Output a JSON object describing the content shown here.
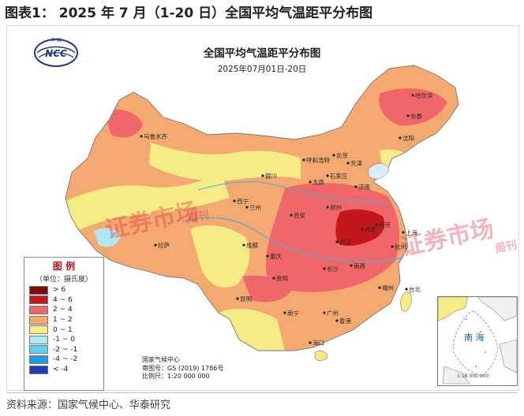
{
  "figure_title": "图表1： 2025 年 7 月（1-20 日）全国平均气温距平分布图",
  "map": {
    "title": "全国平均气温距平分布图",
    "date_range": "2025年07月01日-20日",
    "logo_text": "NCC",
    "logo_small_text": "中 国",
    "inset_label": "南 海",
    "inset_scale": "1:18 000 000",
    "watermark": "证券市场",
    "watermark_sub": "周刊"
  },
  "legend": {
    "title": "图  例",
    "unit": "（单位：摄氏度）",
    "items": [
      {
        "label": "> 6",
        "color": "#7a0c0c"
      },
      {
        "label": "4 ~ 6",
        "color": "#c4171b"
      },
      {
        "label": "2 ~ 4",
        "color": "#f0676a"
      },
      {
        "label": "1 ~ 2",
        "color": "#f3a96f"
      },
      {
        "label": "0 ~ 1",
        "color": "#f5ec85"
      },
      {
        "label": "-1 ~ 0",
        "color": "#aee9f3"
      },
      {
        "label": "-2 ~ -1",
        "color": "#5fd0ee"
      },
      {
        "label": "-4 ~ -2",
        "color": "#1e9fe0"
      },
      {
        "label": "< -4",
        "color": "#1b3fb0"
      }
    ]
  },
  "agency": {
    "name": "国家气候中心",
    "approval": "审图号：GS (2019) 1786号",
    "scale": "比例尺：1:20 000 000"
  },
  "cities": [
    {
      "name": "乌鲁木齐"
    },
    {
      "name": "呼和浩特"
    },
    {
      "name": "北京"
    },
    {
      "name": "天津"
    },
    {
      "name": "石家庄"
    },
    {
      "name": "太原"
    },
    {
      "name": "济南"
    },
    {
      "name": "银川"
    },
    {
      "name": "西宁"
    },
    {
      "name": "兰州"
    },
    {
      "name": "西安"
    },
    {
      "name": "郑州"
    },
    {
      "name": "合肥"
    },
    {
      "name": "南京"
    },
    {
      "name": "上海"
    },
    {
      "name": "武汉"
    },
    {
      "name": "杭州"
    },
    {
      "name": "成都"
    },
    {
      "name": "重庆"
    },
    {
      "name": "长沙"
    },
    {
      "name": "南昌"
    },
    {
      "name": "福州"
    },
    {
      "name": "台北"
    },
    {
      "name": "贵阳"
    },
    {
      "name": "昆明"
    },
    {
      "name": "南宁"
    },
    {
      "name": "广州"
    },
    {
      "name": "香港"
    },
    {
      "name": "海口"
    },
    {
      "name": "拉萨"
    },
    {
      "name": "哈尔滨"
    },
    {
      "name": "长春"
    },
    {
      "name": "沈阳"
    }
  ],
  "source": "资料来源：国家气候中心、华泰研究"
}
